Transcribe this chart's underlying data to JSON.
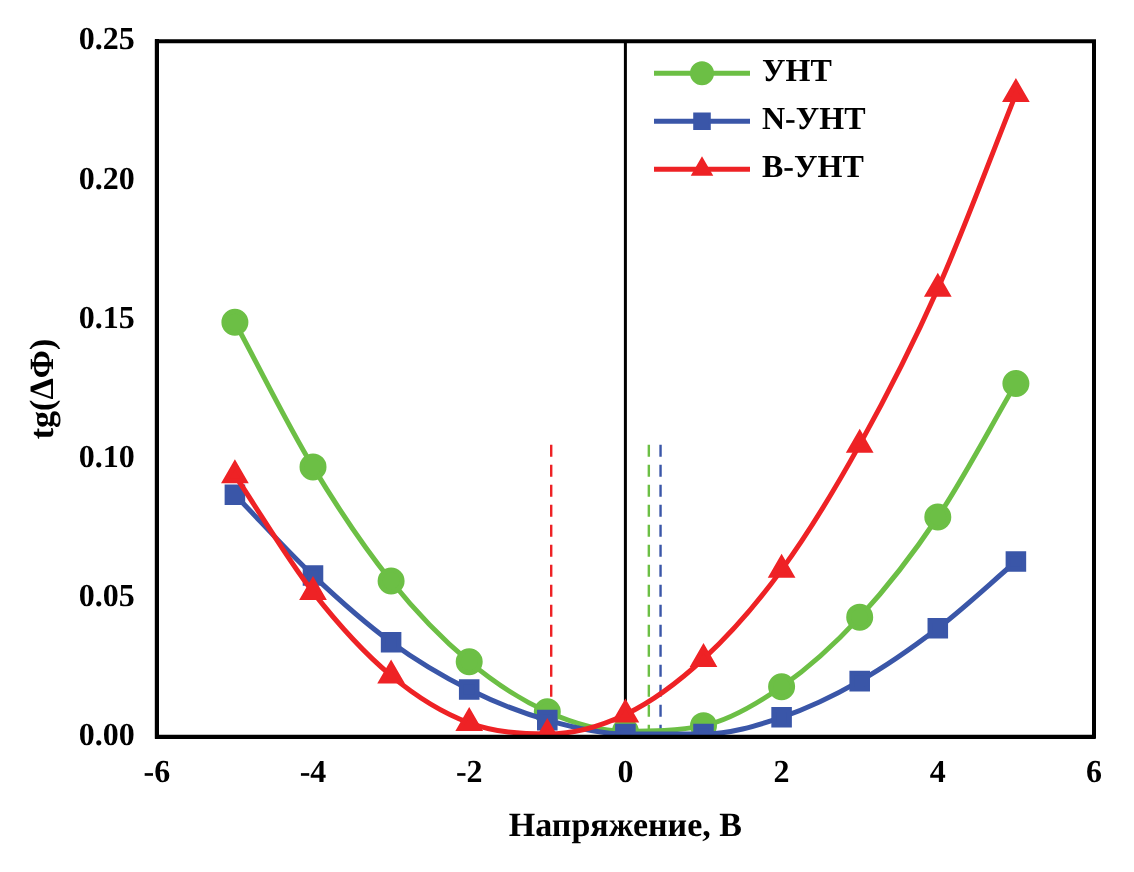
{
  "chart_data": {
    "type": "line",
    "xlabel": "Напряжение, В",
    "ylabel": "tg(ΔΦ)",
    "x": [
      -5,
      -4,
      -3,
      -2,
      -1,
      0,
      1,
      2,
      3,
      4,
      5
    ],
    "series": [
      {
        "name": "УНТ",
        "color": "#6cbf45",
        "marker": "circle",
        "values": [
          0.149,
          0.097,
          0.056,
          0.027,
          0.009,
          0.002,
          0.004,
          0.018,
          0.043,
          0.079,
          0.127
        ]
      },
      {
        "name": "N-УНТ",
        "color": "#3a56a8",
        "marker": "square",
        "values": [
          0.087,
          0.058,
          0.034,
          0.017,
          0.006,
          0.001,
          0.001,
          0.007,
          0.02,
          0.039,
          0.063
        ]
      },
      {
        "name": "B-УНТ",
        "color": "#ee2225",
        "marker": "triangle",
        "values": [
          0.094,
          0.052,
          0.022,
          0.005,
          0.001,
          0.008,
          0.028,
          0.06,
          0.105,
          0.161,
          0.231
        ]
      }
    ],
    "xlim": [
      -6,
      6
    ],
    "xticks": [
      -6,
      -4,
      -2,
      0,
      2,
      4,
      6
    ],
    "ylim": [
      0,
      0.25
    ],
    "yticks": [
      {
        "value": 0,
        "label": "0.00"
      },
      {
        "value": 0.05,
        "label": "0.05"
      },
      {
        "value": 0.1,
        "label": "0.10"
      },
      {
        "value": 0.15,
        "label": "0.15"
      },
      {
        "value": 0.2,
        "label": "0.20"
      },
      {
        "value": 0.25,
        "label": "0.25"
      }
    ],
    "ref_lines": [
      {
        "axis": "x",
        "value": 0,
        "color": "#000000",
        "line_style": "solid"
      },
      {
        "axis": "x",
        "value": -0.95,
        "color": "#ee2225",
        "line_style": "dashed"
      },
      {
        "axis": "x",
        "value": 0.3,
        "color": "#6cbf45",
        "line_style": "dashed"
      },
      {
        "axis": "x",
        "value": 0.45,
        "color": "#3a56a8",
        "line_style": "dashed"
      }
    ],
    "grid": false,
    "legend": "top right",
    "line_style": "solid"
  }
}
